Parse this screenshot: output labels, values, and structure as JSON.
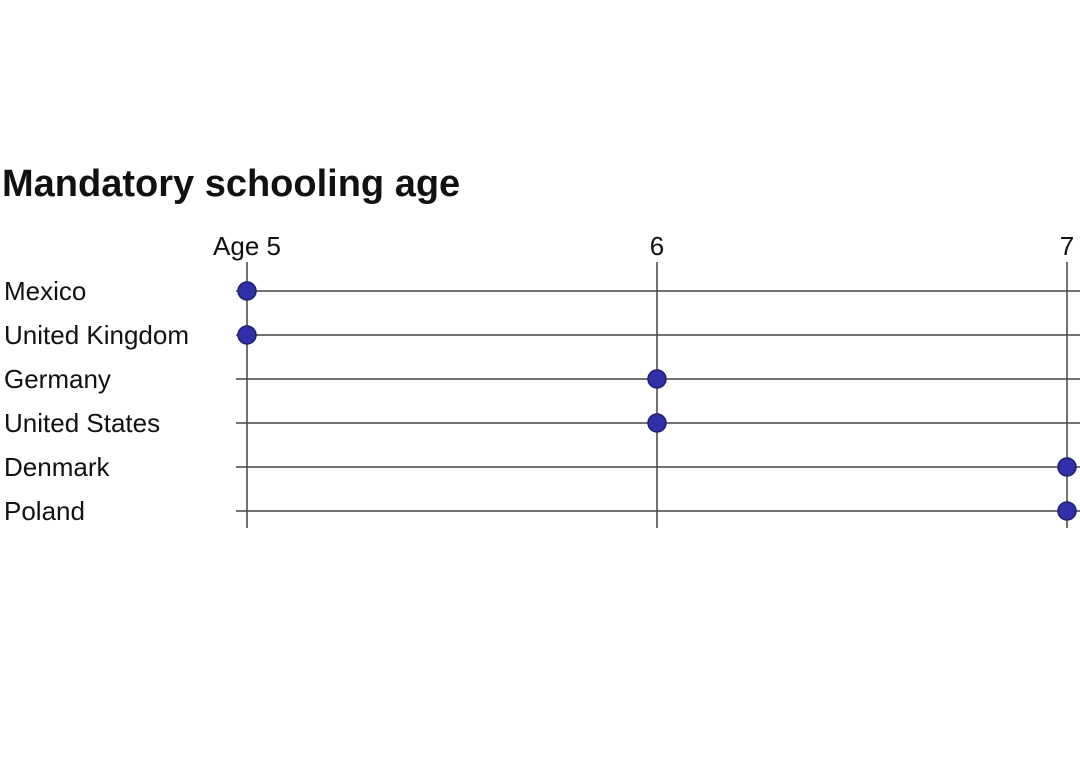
{
  "chart_data": {
    "type": "dot",
    "title": "Mandatory schooling age",
    "categories": [
      "Mexico",
      "United Kingdom",
      "Germany",
      "United States",
      "Denmark",
      "Poland"
    ],
    "values": [
      5,
      5,
      6,
      6,
      7,
      7
    ],
    "color": "#3030a8",
    "xlim": [
      5,
      7
    ],
    "xticks": [
      {
        "value": 5,
        "label": "Age 5"
      },
      6,
      7
    ],
    "grid": true
  }
}
